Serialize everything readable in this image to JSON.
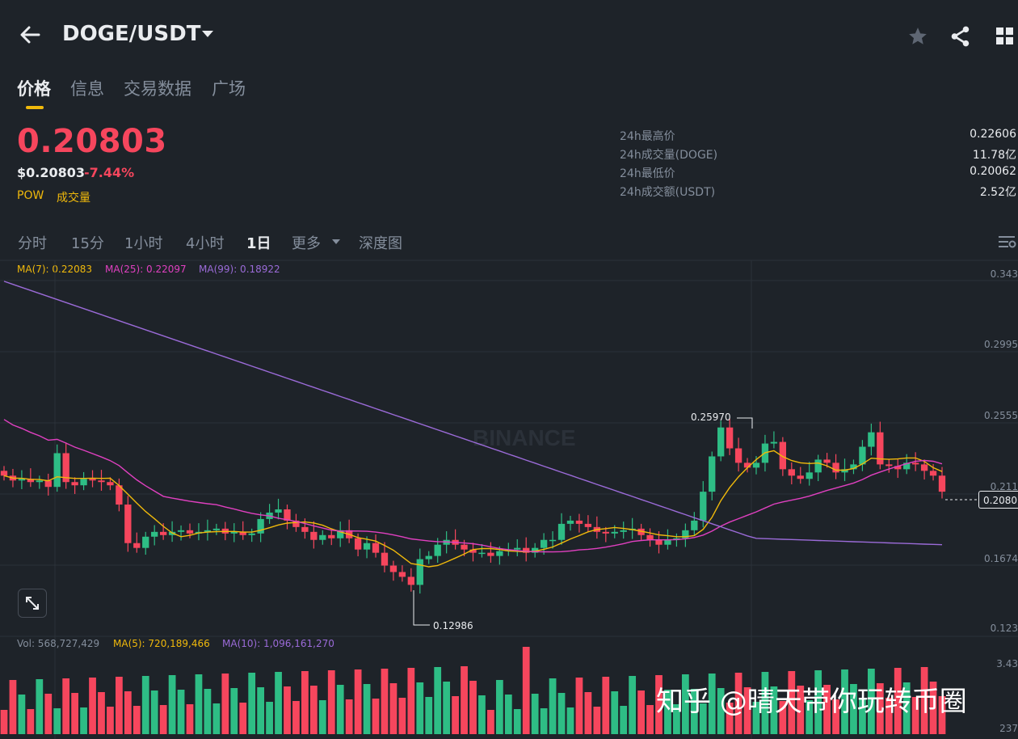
{
  "header": {
    "pair": "DOGE/USDT"
  },
  "tabs": [
    "价格",
    "信息",
    "交易数据",
    "广场"
  ],
  "price": {
    "last": "0.20803",
    "usd": "$0.20803",
    "change": "-7.44%"
  },
  "tags": {
    "pow": "POW",
    "volume": "成交量"
  },
  "stats": [
    {
      "label": "24h最高价",
      "value": "0.22606"
    },
    {
      "label": "24h成交量(DOGE)",
      "value": "11.78亿"
    },
    {
      "label": "24h最低价",
      "value": "0.20062"
    },
    {
      "label": "24h成交额(USDT)",
      "value": "2.52亿"
    }
  ],
  "intervals": [
    "分时",
    "15分",
    "1小时",
    "4小时",
    "1日",
    "更多",
    "深度图"
  ],
  "ma": {
    "ma7": "MA(7): 0.22083",
    "ma25": "MA(25): 0.22097",
    "ma99": "MA(99): 0.18922"
  },
  "vol": {
    "vol": "Vol: 568,727,429",
    "ma5": "MA(5): 720,189,466",
    "ma10": "MA(10): 1,096,161,270"
  },
  "axis": {
    "p1": "0.343",
    "p2": "0.2995",
    "p3": "0.2555",
    "p4": "0.211",
    "p5": "0.1674",
    "p6": "0.123",
    "current": "0.2080",
    "v1": "3.43",
    "v2": "237"
  },
  "annotations": {
    "high": "0.25970",
    "low": "0.12986"
  },
  "chart_watermark": "BINANCE",
  "watermark": "知乎 @晴天带你玩转币圈",
  "colors": {
    "up": "#2ebd85",
    "down": "#f6465d",
    "accent": "#f0b90b",
    "ma7": "#f0b90b",
    "ma25": "#e040c0",
    "ma99": "#9b6bd8",
    "bg": "#1e2329"
  },
  "icons": [
    "back-arrow-icon",
    "dropdown-caret-icon",
    "star-icon",
    "share-icon",
    "grid-icon",
    "chart-settings-icon",
    "expand-icon"
  ]
}
